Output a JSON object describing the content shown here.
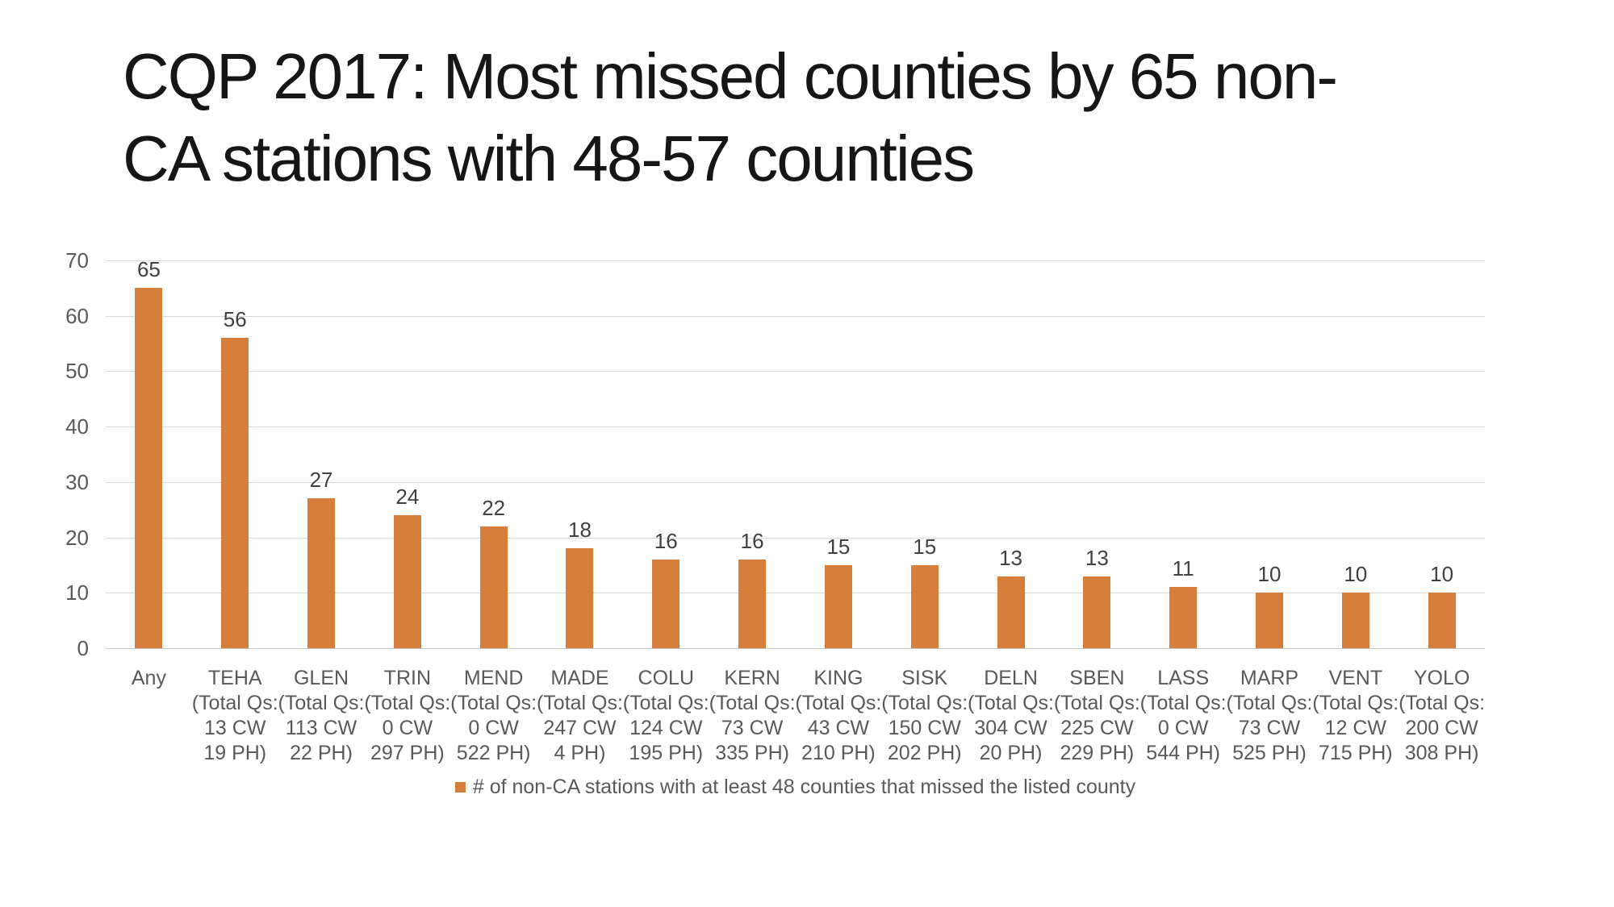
{
  "title": {
    "line1": "CQP 2017: Most missed counties by 65 non-",
    "line2": "CA stations with 48-57 counties"
  },
  "legend": {
    "label": "# of non-CA stations with at least 48 counties that missed the listed county"
  },
  "colors": {
    "bar": "#D67E3B",
    "gridline": "#D9D9D9",
    "axis_text": "#595959",
    "value_label_text": "#404040",
    "title_text": "#161616"
  },
  "chart_data": {
    "type": "bar",
    "title": "CQP 2017: Most missed counties by 65 non-CA stations with 48-57 counties",
    "categories": [
      "Any",
      "TEHA",
      "GLEN",
      "TRIN",
      "MEND",
      "MADE",
      "COLU",
      "KERN",
      "KING",
      "SISK",
      "DELN",
      "SBEN",
      "LASS",
      "MARP",
      "VENT",
      "YOLO"
    ],
    "values": [
      65,
      56,
      27,
      24,
      22,
      18,
      16,
      16,
      15,
      15,
      13,
      13,
      11,
      10,
      10,
      10
    ],
    "category_sublabels": [
      [],
      [
        "(Total Qs:",
        "13 CW",
        "19 PH)"
      ],
      [
        "(Total Qs:",
        "113 CW",
        "22 PH)"
      ],
      [
        "(Total Qs:",
        "0 CW",
        "297 PH)"
      ],
      [
        "(Total Qs:",
        "0 CW",
        "522 PH)"
      ],
      [
        "(Total Qs:",
        "247 CW",
        "4 PH)"
      ],
      [
        "(Total Qs:",
        "124 CW",
        "195 PH)"
      ],
      [
        "(Total Qs:",
        "73 CW",
        "335 PH)"
      ],
      [
        "(Total Qs:",
        "43 CW",
        "210 PH)"
      ],
      [
        "(Total Qs:",
        "150 CW",
        "202 PH)"
      ],
      [
        "(Total Qs:",
        "304 CW",
        "20 PH)"
      ],
      [
        "(Total Qs:",
        "225 CW",
        "229 PH)"
      ],
      [
        "(Total Qs:",
        "0 CW",
        "544 PH)"
      ],
      [
        "(Total Qs:",
        "73 CW",
        "525 PH)"
      ],
      [
        "(Total Qs:",
        "12 CW",
        "715 PH)"
      ],
      [
        "(Total Qs:",
        "200 CW",
        "308 PH)"
      ]
    ],
    "series_name": "# of non-CA stations with at least 48 counties that missed the listed county",
    "xlabel": "",
    "ylabel": "",
    "ylim": [
      0,
      70
    ],
    "yticks": [
      0,
      10,
      20,
      30,
      40,
      50,
      60,
      70
    ],
    "grid": true,
    "legend_position": "bottom",
    "bar_color": "#D67E3B"
  }
}
